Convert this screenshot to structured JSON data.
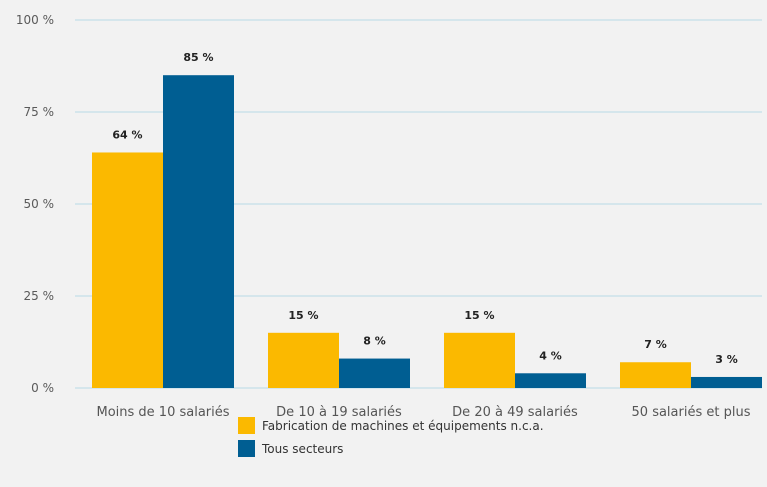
{
  "chart_data": {
    "type": "bar",
    "categories": [
      "Moins de 10 salariés",
      "De 10 à 19 salariés",
      "De 20 à 49 salariés",
      "50 salariés et plus"
    ],
    "series": [
      {
        "name": "Fabrication de machines et équipements n.c.a.",
        "color": "#fbb900",
        "values": [
          64,
          15,
          15,
          7
        ],
        "labels": [
          "64 %",
          "15 %",
          "15 %",
          "7 %"
        ]
      },
      {
        "name": "Tous secteurs",
        "color": "#005e92",
        "values": [
          85,
          8,
          4,
          3
        ],
        "labels": [
          "85 %",
          "8 %",
          "4 %",
          "3 %"
        ]
      }
    ],
    "title": "",
    "xlabel": "",
    "ylabel": "",
    "ylim": [
      0,
      100
    ],
    "yticks": [
      0,
      25,
      50,
      75,
      100
    ],
    "ytick_labels": [
      "0 %",
      "25 %",
      "50 %",
      "75 %",
      "100 %"
    ],
    "grid": true,
    "grid_color": "#b8dbe6",
    "legend_position": "bottom-center"
  }
}
